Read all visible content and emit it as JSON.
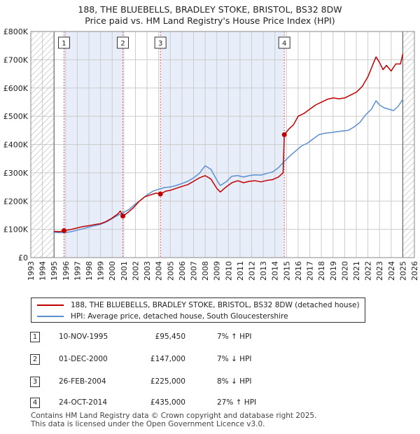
{
  "title": {
    "line1": "188, THE BLUEBELLS, BRADLEY STOKE, BRISTOL, BS32 8DW",
    "line2": "Price paid vs. HM Land Registry's House Price Index (HPI)"
  },
  "colors": {
    "price_line": "#c00000",
    "hpi_line": "#5b8fd0",
    "sale_band": "#e8eef9",
    "vline": "#e06060",
    "grid": "#cccccc",
    "hatch": "#999999"
  },
  "legend": {
    "price_label": "188, THE BLUEBELLS, BRADLEY STOKE, BRISTOL, BS32 8DW (detached house)",
    "hpi_label": "HPI: Average price, detached house, South Gloucestershire"
  },
  "sales": [
    {
      "num": "1",
      "date": "10-NOV-1995",
      "price": "£95,450",
      "hpi": "7% ↑ HPI"
    },
    {
      "num": "2",
      "date": "01-DEC-2000",
      "price": "£147,000",
      "hpi": "7% ↓ HPI"
    },
    {
      "num": "3",
      "date": "26-FEB-2004",
      "price": "£225,000",
      "hpi": "8% ↓ HPI"
    },
    {
      "num": "4",
      "date": "24-OCT-2014",
      "price": "£435,000",
      "hpi": "27% ↑ HPI"
    }
  ],
  "footer": {
    "line1": "Contains HM Land Registry data © Crown copyright and database right 2025.",
    "line2": "This data is licensed under the Open Government Licence v3.0."
  },
  "chart_data": {
    "type": "line",
    "title": "Price paid vs. HM Land Registry's House Price Index (HPI)",
    "xlim": [
      1993,
      2026
    ],
    "ylim": [
      0,
      800000
    ],
    "x_ticks": [
      1993,
      1994,
      1995,
      1996,
      1997,
      1998,
      1999,
      2000,
      2001,
      2002,
      2003,
      2004,
      2005,
      2006,
      2007,
      2008,
      2009,
      2010,
      2011,
      2012,
      2013,
      2014,
      2015,
      2016,
      2017,
      2018,
      2019,
      2020,
      2021,
      2022,
      2023,
      2024,
      2025,
      2026
    ],
    "y_ticks": [
      0,
      100000,
      200000,
      300000,
      400000,
      500000,
      600000,
      700000,
      800000
    ],
    "y_tick_labels": [
      "£0",
      "£100K",
      "£200K",
      "£300K",
      "£400K",
      "£500K",
      "£600K",
      "£700K",
      "£800K"
    ],
    "hatched_ranges": [
      [
        1993,
        1995.0
      ],
      [
        2025.0,
        2026
      ]
    ],
    "sale_bands": [
      [
        1995.86,
        2000.92
      ],
      [
        2004.15,
        2014.81
      ]
    ],
    "sale_markers": [
      {
        "label": "1",
        "x": 1995.86,
        "y": 95450
      },
      {
        "label": "2",
        "x": 2000.92,
        "y": 147000
      },
      {
        "label": "3",
        "x": 2004.15,
        "y": 225000
      },
      {
        "label": "4",
        "x": 2014.81,
        "y": 435000
      }
    ],
    "series": [
      {
        "name": "188, THE BLUEBELLS, BRADLEY STOKE, BRISTOL, BS32 8DW (detached house)",
        "x": [
          1995.0,
          1995.5,
          1995.86,
          1996.5,
          1997.0,
          1997.5,
          1998.0,
          1998.5,
          1999.0,
          1999.5,
          2000.0,
          2000.5,
          2000.7,
          2000.92,
          2001.3,
          2001.8,
          2002.3,
          2002.8,
          2003.3,
          2003.8,
          2004.15,
          2004.6,
          2005.0,
          2005.5,
          2006.0,
          2006.5,
          2007.0,
          2007.5,
          2008.0,
          2008.5,
          2009.0,
          2009.3,
          2009.8,
          2010.3,
          2010.8,
          2011.3,
          2011.8,
          2012.3,
          2012.8,
          2013.3,
          2013.8,
          2014.3,
          2014.7,
          2014.81,
          2015.2,
          2015.6,
          2016.0,
          2016.5,
          2017.0,
          2017.5,
          2018.0,
          2018.5,
          2019.0,
          2019.5,
          2020.0,
          2020.5,
          2021.0,
          2021.5,
          2022.0,
          2022.4,
          2022.7,
          2023.0,
          2023.3,
          2023.6,
          2024.0,
          2024.4,
          2024.8,
          2025.0
        ],
        "values": [
          93000,
          92000,
          95450,
          100000,
          105000,
          110000,
          113000,
          117000,
          120000,
          128000,
          140000,
          155000,
          165000,
          147000,
          158000,
          175000,
          198000,
          215000,
          222000,
          228000,
          225000,
          235000,
          238000,
          245000,
          252000,
          258000,
          270000,
          282000,
          290000,
          278000,
          245000,
          232000,
          250000,
          265000,
          272000,
          265000,
          270000,
          272000,
          268000,
          273000,
          276000,
          285000,
          300000,
          435000,
          455000,
          470000,
          500000,
          510000,
          525000,
          540000,
          550000,
          560000,
          565000,
          562000,
          565000,
          575000,
          585000,
          605000,
          640000,
          680000,
          710000,
          690000,
          665000,
          680000,
          660000,
          685000,
          685000,
          720000
        ]
      },
      {
        "name": "HPI: Average price, detached house, South Gloucestershire",
        "x": [
          1995.0,
          1995.5,
          1996.0,
          1996.5,
          1997.0,
          1997.5,
          1998.0,
          1998.5,
          1999.0,
          1999.5,
          2000.0,
          2000.5,
          2001.0,
          2001.5,
          2002.0,
          2002.5,
          2003.0,
          2003.5,
          2004.0,
          2004.5,
          2005.0,
          2005.5,
          2006.0,
          2006.5,
          2007.0,
          2007.5,
          2008.0,
          2008.5,
          2009.0,
          2009.3,
          2009.8,
          2010.3,
          2010.8,
          2011.3,
          2011.8,
          2012.3,
          2012.8,
          2013.3,
          2013.8,
          2014.3,
          2014.8,
          2015.3,
          2015.8,
          2016.3,
          2016.8,
          2017.3,
          2017.8,
          2018.3,
          2018.8,
          2019.3,
          2019.8,
          2020.3,
          2020.8,
          2021.3,
          2021.8,
          2022.3,
          2022.7,
          2023.0,
          2023.4,
          2023.8,
          2024.2,
          2024.6,
          2025.0
        ],
        "values": [
          90000,
          88000,
          89000,
          92000,
          97000,
          102000,
          108000,
          113000,
          118000,
          126000,
          138000,
          150000,
          160000,
          172000,
          190000,
          205000,
          222000,
          235000,
          242000,
          248000,
          250000,
          255000,
          262000,
          270000,
          282000,
          298000,
          325000,
          312000,
          275000,
          255000,
          268000,
          288000,
          290000,
          285000,
          290000,
          293000,
          292000,
          298000,
          303000,
          318000,
          340000,
          360000,
          378000,
          395000,
          405000,
          420000,
          435000,
          440000,
          442000,
          445000,
          448000,
          450000,
          462000,
          478000,
          505000,
          525000,
          555000,
          540000,
          530000,
          525000,
          520000,
          535000,
          560000
        ]
      }
    ]
  }
}
